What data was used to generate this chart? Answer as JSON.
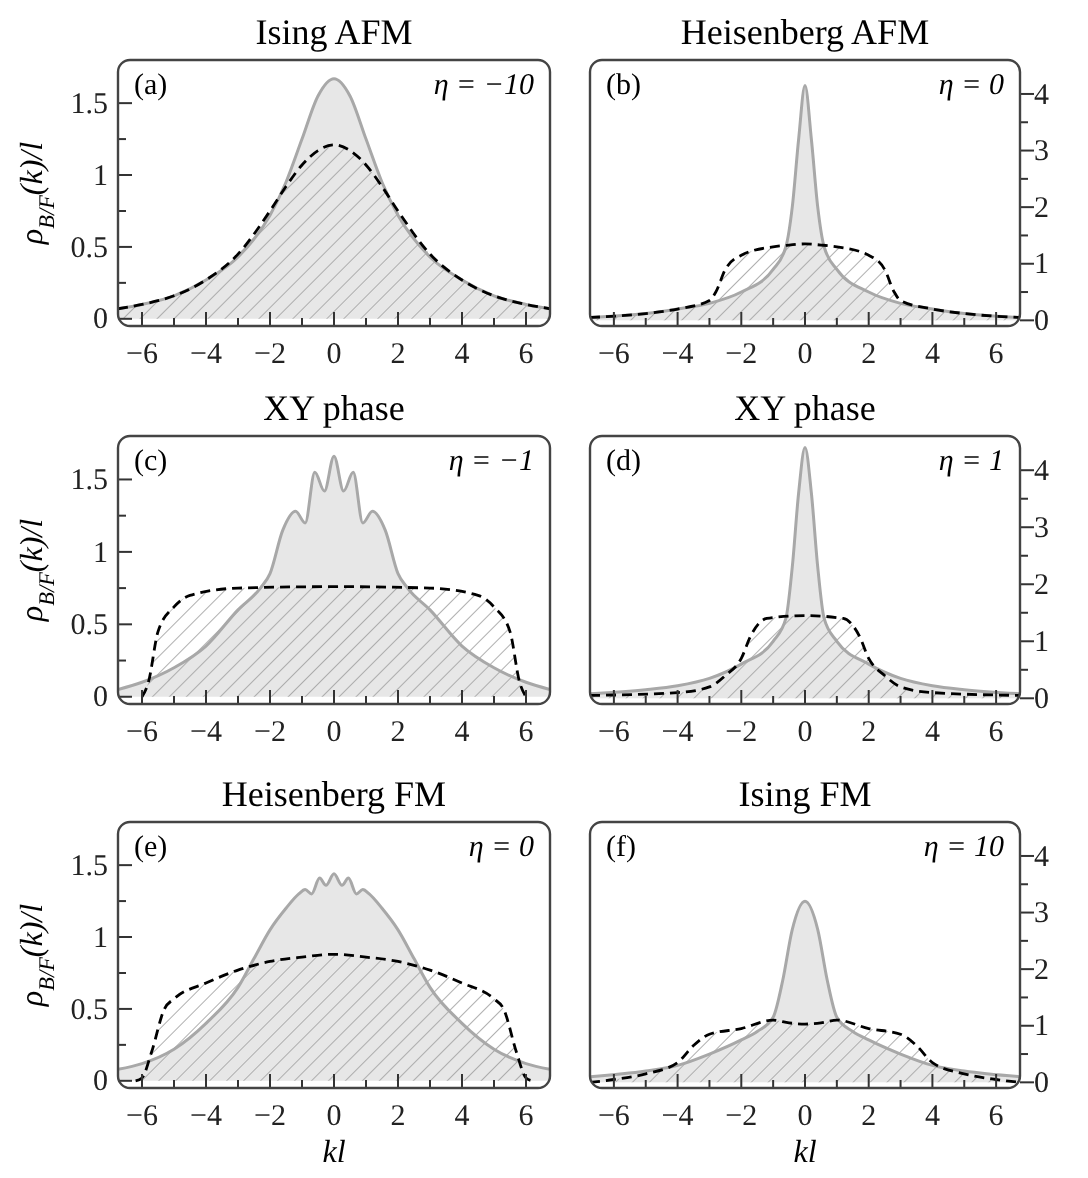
{
  "chart_data": [
    {
      "type": "area",
      "title": "Ising AFM",
      "ylabel": "ρ$_{B/F}$(k)/l",
      "annotations": [
        "(a)",
        "η = −10"
      ],
      "xlim": [
        -6.75,
        6.75
      ],
      "ylim": [
        -0.05,
        1.8
      ],
      "xticks": [
        -6,
        {
          "value": -5,
          "label": null
        },
        -4,
        {
          "value": -3,
          "label": null
        },
        -2,
        {
          "value": -1,
          "label": null
        },
        0,
        {
          "value": 1,
          "label": null
        },
        2,
        {
          "value": 3,
          "label": null
        },
        4,
        {
          "value": 5,
          "label": null
        },
        6
      ],
      "yticks": [
        0,
        {
          "value": 0.25,
          "label": null
        },
        0.5,
        {
          "value": 0.75,
          "label": null
        },
        1,
        {
          "value": 1.25,
          "label": null
        },
        1.5
      ],
      "series": [
        {
          "color": "#a8a8a8",
          "line_style": "solid",
          "x": [
            -6.75,
            -6,
            -5,
            -4,
            -3,
            -2,
            -1.5,
            -1,
            -0.5,
            0,
            0.5,
            1,
            1.5,
            2,
            3,
            4,
            5,
            6,
            6.75
          ],
          "values": [
            0.07,
            0.1,
            0.16,
            0.27,
            0.43,
            0.72,
            0.95,
            1.25,
            1.55,
            1.67,
            1.55,
            1.25,
            0.95,
            0.72,
            0.43,
            0.27,
            0.16,
            0.1,
            0.07
          ]
        },
        {
          "color": "#000000",
          "line_style": "dashed",
          "x": [
            -6.75,
            -6,
            -5,
            -4,
            -3,
            -2,
            -1.5,
            -1,
            -0.5,
            0,
            0.5,
            1,
            1.5,
            2,
            3,
            4,
            5,
            6,
            6.75
          ],
          "values": [
            0.07,
            0.1,
            0.16,
            0.27,
            0.45,
            0.75,
            0.92,
            1.07,
            1.17,
            1.21,
            1.17,
            1.07,
            0.92,
            0.75,
            0.45,
            0.27,
            0.16,
            0.1,
            0.07
          ]
        }
      ]
    },
    {
      "type": "area",
      "title": "Heisenberg AFM",
      "annotations": [
        "(b)",
        "η = 0"
      ],
      "xlim": [
        -6.75,
        6.75
      ],
      "y2lim": [
        -0.1,
        4.6
      ],
      "xticks": [
        -6,
        {
          "value": -5,
          "label": null
        },
        -4,
        {
          "value": -3,
          "label": null
        },
        -2,
        {
          "value": -1,
          "label": null
        },
        0,
        {
          "value": 1,
          "label": null
        },
        2,
        {
          "value": 3,
          "label": null
        },
        4,
        {
          "value": 5,
          "label": null
        },
        6
      ],
      "y2ticks": [
        0,
        {
          "value": 0.5,
          "label": null
        },
        1,
        {
          "value": 1.5,
          "label": null
        },
        2,
        {
          "value": 2.5,
          "label": null
        },
        3,
        {
          "value": 3.5,
          "label": null
        },
        4
      ],
      "series": [
        {
          "color": "#a8a8a8",
          "line_style": "solid",
          "axis": "y2",
          "x": [
            -6.75,
            -5,
            -4,
            -3,
            -2,
            -1,
            -0.6,
            -0.4,
            -0.2,
            0,
            0.2,
            0.4,
            0.6,
            1,
            2,
            3,
            4,
            5,
            6.75
          ],
          "values": [
            0.05,
            0.12,
            0.2,
            0.3,
            0.5,
            0.9,
            1.3,
            2.0,
            3.2,
            4.15,
            3.2,
            2.0,
            1.3,
            0.9,
            0.5,
            0.3,
            0.2,
            0.12,
            0.05
          ]
        },
        {
          "color": "#000000",
          "line_style": "dashed",
          "axis": "y2",
          "x": [
            -6.75,
            -5,
            -4,
            -3,
            -2.8,
            -2.5,
            -2,
            -1,
            -0.5,
            0,
            0.5,
            1,
            2,
            2.5,
            2.8,
            3,
            4,
            5,
            6.75
          ],
          "values": [
            0.05,
            0.12,
            0.2,
            0.35,
            0.5,
            0.9,
            1.15,
            1.3,
            1.33,
            1.35,
            1.33,
            1.3,
            1.15,
            0.9,
            0.5,
            0.35,
            0.2,
            0.12,
            0.05
          ]
        }
      ]
    },
    {
      "type": "area",
      "title": "XY phase",
      "ylabel": "ρ$_{B/F}$(k)/l",
      "annotations": [
        "(c)",
        "η = −1"
      ],
      "xlim": [
        -6.75,
        6.75
      ],
      "ylim": [
        -0.05,
        1.8
      ],
      "xticks": [
        -6,
        {
          "value": -5,
          "label": null
        },
        -4,
        {
          "value": -3,
          "label": null
        },
        -2,
        {
          "value": -1,
          "label": null
        },
        0,
        {
          "value": 1,
          "label": null
        },
        2,
        {
          "value": 3,
          "label": null
        },
        4,
        {
          "value": 5,
          "label": null
        },
        6
      ],
      "yticks": [
        0,
        {
          "value": 0.25,
          "label": null
        },
        0.5,
        {
          "value": 0.75,
          "label": null
        },
        1,
        {
          "value": 1.25,
          "label": null
        },
        1.5
      ],
      "series": [
        {
          "color": "#a8a8a8",
          "line_style": "solid",
          "x": [
            -6.75,
            -6,
            -5,
            -4,
            -3,
            -2.3,
            -2,
            -1.6,
            -1.2,
            -0.9,
            -0.6,
            -0.3,
            0,
            0.3,
            0.6,
            0.9,
            1.2,
            1.6,
            2,
            2.3,
            3,
            4,
            5,
            6,
            6.75
          ],
          "values": [
            0.05,
            0.1,
            0.2,
            0.35,
            0.6,
            0.75,
            0.85,
            1.15,
            1.28,
            1.2,
            1.55,
            1.42,
            1.66,
            1.42,
            1.55,
            1.2,
            1.28,
            1.15,
            0.85,
            0.75,
            0.6,
            0.35,
            0.2,
            0.1,
            0.05
          ]
        },
        {
          "color": "#000000",
          "line_style": "dashed",
          "x": [
            -6,
            -5.8,
            -5.5,
            -5,
            -4.5,
            -3,
            0,
            3,
            4.5,
            5,
            5.5,
            5.8,
            6
          ],
          "values": [
            0.0,
            0.1,
            0.45,
            0.62,
            0.7,
            0.75,
            0.76,
            0.75,
            0.7,
            0.62,
            0.45,
            0.1,
            0.0
          ]
        }
      ]
    },
    {
      "type": "area",
      "title": "XY phase",
      "annotations": [
        "(d)",
        "η = 1"
      ],
      "xlim": [
        -6.75,
        6.75
      ],
      "y2lim": [
        -0.1,
        4.6
      ],
      "xticks": [
        -6,
        {
          "value": -5,
          "label": null
        },
        -4,
        {
          "value": -3,
          "label": null
        },
        -2,
        {
          "value": -1,
          "label": null
        },
        0,
        {
          "value": 1,
          "label": null
        },
        2,
        {
          "value": 3,
          "label": null
        },
        4,
        {
          "value": 5,
          "label": null
        },
        6
      ],
      "y2ticks": [
        0,
        {
          "value": 0.5,
          "label": null
        },
        1,
        {
          "value": 1.5,
          "label": null
        },
        2,
        {
          "value": 2.5,
          "label": null
        },
        3,
        {
          "value": 3.5,
          "label": null
        },
        4
      ],
      "series": [
        {
          "color": "#a8a8a8",
          "line_style": "solid",
          "axis": "y2",
          "x": [
            -6.75,
            -5,
            -4,
            -3,
            -2,
            -1,
            -0.6,
            -0.4,
            -0.2,
            0,
            0.2,
            0.4,
            0.6,
            1,
            2,
            3,
            4,
            5,
            6.75
          ],
          "values": [
            0.08,
            0.15,
            0.22,
            0.35,
            0.6,
            1.0,
            1.4,
            2.3,
            3.6,
            4.4,
            3.6,
            2.3,
            1.4,
            1.0,
            0.6,
            0.35,
            0.22,
            0.15,
            0.08
          ]
        },
        {
          "color": "#000000",
          "line_style": "dashed",
          "axis": "y2",
          "x": [
            -6.75,
            -4,
            -3,
            -2.5,
            -2,
            -1.7,
            -1.2,
            0,
            1.2,
            1.7,
            2,
            2.5,
            3,
            4,
            6.75
          ],
          "values": [
            0.05,
            0.1,
            0.2,
            0.4,
            0.7,
            1.1,
            1.4,
            1.45,
            1.4,
            1.1,
            0.7,
            0.4,
            0.2,
            0.1,
            0.05
          ]
        }
      ]
    },
    {
      "type": "area",
      "title": "Heisenberg FM",
      "xlabel": "kl",
      "ylabel": "ρ$_{B/F}$(k)/l",
      "annotations": [
        "(e)",
        "η = 0"
      ],
      "xlim": [
        -6.75,
        6.75
      ],
      "ylim": [
        -0.05,
        1.8
      ],
      "xticks": [
        -6,
        {
          "value": -5,
          "label": null
        },
        -4,
        {
          "value": -3,
          "label": null
        },
        -2,
        {
          "value": -1,
          "label": null
        },
        0,
        {
          "value": 1,
          "label": null
        },
        2,
        {
          "value": 3,
          "label": null
        },
        4,
        {
          "value": 5,
          "label": null
        },
        6
      ],
      "yticks": [
        0,
        {
          "value": 0.25,
          "label": null
        },
        0.5,
        {
          "value": 0.75,
          "label": null
        },
        1,
        {
          "value": 1.25,
          "label": null
        },
        1.5
      ],
      "series": [
        {
          "color": "#a8a8a8",
          "line_style": "solid",
          "x": [
            -6.75,
            -6,
            -5,
            -4,
            -3,
            -2.5,
            -2,
            -1.5,
            -1.1,
            -0.9,
            -0.7,
            -0.45,
            -0.25,
            0,
            0.25,
            0.45,
            0.7,
            0.9,
            1.1,
            1.5,
            2,
            2.5,
            3,
            4,
            5,
            6,
            6.75
          ],
          "values": [
            0.08,
            0.12,
            0.22,
            0.4,
            0.65,
            0.85,
            1.05,
            1.2,
            1.3,
            1.33,
            1.3,
            1.41,
            1.36,
            1.44,
            1.36,
            1.41,
            1.3,
            1.33,
            1.3,
            1.2,
            1.05,
            0.85,
            0.65,
            0.4,
            0.22,
            0.12,
            0.08
          ]
        },
        {
          "color": "#000000",
          "line_style": "dashed",
          "x": [
            -6.2,
            -6,
            -5.7,
            -5.3,
            -5,
            -4,
            -3,
            -2,
            -1,
            0,
            1,
            2,
            3,
            4,
            5,
            5.3,
            5.7,
            6,
            6.2
          ],
          "values": [
            0.0,
            0.02,
            0.2,
            0.5,
            0.57,
            0.68,
            0.77,
            0.83,
            0.86,
            0.88,
            0.86,
            0.83,
            0.77,
            0.68,
            0.57,
            0.5,
            0.2,
            0.02,
            0.0
          ]
        }
      ]
    },
    {
      "type": "area",
      "title": "Ising FM",
      "xlabel": "kl",
      "annotations": [
        "(f)",
        "η = 10"
      ],
      "xlim": [
        -6.75,
        6.75
      ],
      "y2lim": [
        -0.1,
        4.6
      ],
      "xticks": [
        -6,
        {
          "value": -5,
          "label": null
        },
        -4,
        {
          "value": -3,
          "label": null
        },
        -2,
        {
          "value": -1,
          "label": null
        },
        0,
        {
          "value": 1,
          "label": null
        },
        2,
        {
          "value": 3,
          "label": null
        },
        4,
        {
          "value": 5,
          "label": null
        },
        6
      ],
      "y2ticks": [
        0,
        {
          "value": 0.5,
          "label": null
        },
        1,
        {
          "value": 1.5,
          "label": null
        },
        2,
        {
          "value": 2.5,
          "label": null
        },
        3,
        {
          "value": 3.5,
          "label": null
        },
        4
      ],
      "series": [
        {
          "color": "#a8a8a8",
          "line_style": "solid",
          "axis": "y2",
          "x": [
            -6.75,
            -5,
            -4,
            -3,
            -2,
            -1.5,
            -1,
            -0.7,
            -0.4,
            0,
            0.4,
            0.7,
            1,
            1.5,
            2,
            3,
            4,
            5,
            6.75
          ],
          "values": [
            0.1,
            0.2,
            0.3,
            0.5,
            0.75,
            0.9,
            1.15,
            1.8,
            2.7,
            3.2,
            2.7,
            1.8,
            1.15,
            0.9,
            0.75,
            0.5,
            0.3,
            0.2,
            0.1
          ]
        },
        {
          "color": "#000000",
          "line_style": "dashed",
          "axis": "y2",
          "x": [
            -6.75,
            -6,
            -5,
            -4,
            -3.5,
            -3,
            -2,
            -1,
            -0.5,
            0,
            0.5,
            1,
            2,
            3,
            3.5,
            4,
            5,
            6,
            6.75
          ],
          "values": [
            0.0,
            0.05,
            0.15,
            0.35,
            0.65,
            0.85,
            0.95,
            1.1,
            1.05,
            1.03,
            1.05,
            1.1,
            0.95,
            0.85,
            0.65,
            0.35,
            0.15,
            0.05,
            0.0
          ]
        }
      ]
    }
  ]
}
